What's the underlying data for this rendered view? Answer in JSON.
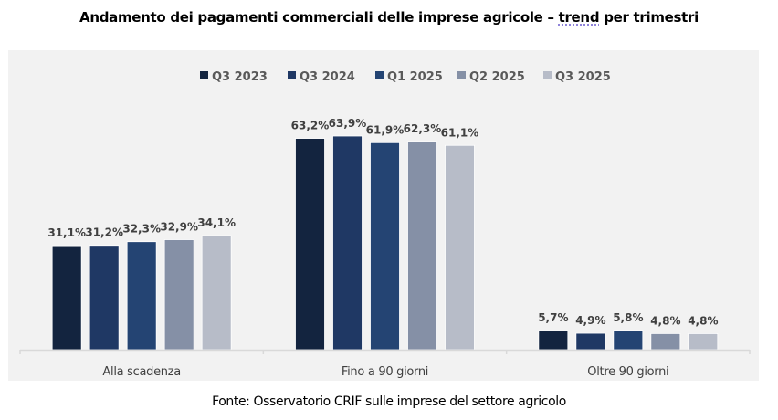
{
  "chart_data": {
    "type": "bar",
    "title_parts": [
      "Andamento dei pagamenti commerciali delle imprese agricole – ",
      "trend",
      " per trimestri"
    ],
    "categories": [
      "Alla scadenza",
      "Fino a 90 giorni",
      "Oltre 90 giorni"
    ],
    "series": [
      {
        "name": "Q3 2023",
        "color": "#13243f",
        "values": [
          31.1,
          63.2,
          5.7
        ],
        "labels": [
          "31,1%",
          "63,2%",
          "5,7%"
        ]
      },
      {
        "name": "Q3 2024",
        "color": "#1f3864",
        "values": [
          31.2,
          63.9,
          4.9
        ],
        "labels": [
          "31,2%",
          "63,9%",
          "4,9%"
        ]
      },
      {
        "name": "Q1 2025",
        "color": "#244473",
        "values": [
          32.3,
          61.9,
          5.8
        ],
        "labels": [
          "32,3%",
          "61,9%",
          "5,8%"
        ]
      },
      {
        "name": "Q2 2025",
        "color": "#8590a6",
        "values": [
          32.9,
          62.3,
          4.8
        ],
        "labels": [
          "32,9%",
          "62,3%",
          "4,8%"
        ]
      },
      {
        "name": "Q3 2025",
        "color": "#b7bcc8",
        "values": [
          34.1,
          61.1,
          4.8
        ],
        "labels": [
          "34,1%",
          "61,1%",
          "4,8%"
        ]
      }
    ],
    "xlabel": "",
    "ylabel": "",
    "ylim": [
      0,
      70
    ],
    "grid": false,
    "legend_position": "top",
    "source": "Fonte: Osservatorio CRIF sulle imprese del settore agricolo"
  }
}
